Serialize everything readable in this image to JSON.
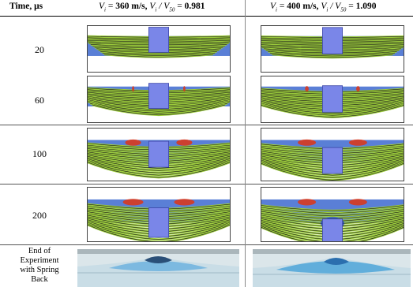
{
  "table": {
    "time_header": "Time, μs",
    "col1": {
      "v_label": "V",
      "v_sub": "i",
      "eq": " = ",
      "speed": "360 m/s,",
      "ratio_label": "V",
      "ratio_sub": "i",
      "ratio_mid": " / V",
      "ratio_sub2": "50",
      "ratio_eq": " = ",
      "ratio": "0.981"
    },
    "col2": {
      "v_label": "V",
      "v_sub": "i",
      "eq": " = ",
      "speed": "400 m/s,",
      "ratio_label": "V",
      "ratio_sub": "i",
      "ratio_mid": " / V",
      "ratio_sub2": "50",
      "ratio_eq": " = ",
      "ratio": "1.090"
    },
    "rows": [
      {
        "time": "20"
      },
      {
        "time": "60"
      },
      {
        "time": "100"
      },
      {
        "time": "200"
      }
    ],
    "end_row_label": [
      "End of",
      "Experiment",
      "with Spring",
      "Back"
    ]
  },
  "colors": {
    "background_blue": "#5a7fd6",
    "layer_green": "#9ccc3c",
    "layer_line": "#1a1a1a",
    "projectile": "#7a86e8",
    "damage_red": "#d83a1e",
    "damage_blue": "#1a3cb8",
    "photo_bg": "#d9e6ea",
    "photo_blue": "#4fa6d8"
  }
}
